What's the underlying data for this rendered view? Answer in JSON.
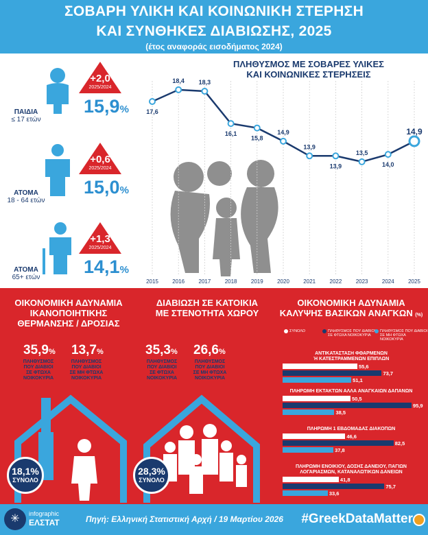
{
  "header": {
    "title_line1": "ΣΟΒΑΡΗ ΥΛΙΚΗ ΚΑΙ ΚΟΙΝΩΝΙΚΗ ΣΤΕΡΗΣΗ",
    "title_line2": "ΚΑΙ ΣΥΝΘΗΚΕΣ ΔΙΑΒΙΩΣΗΣ, 2025",
    "subtitle": "(έτος αναφοράς εισοδήματος 2024)"
  },
  "groups": [
    {
      "label": "ΠΑΙΔΙΑ",
      "sub": "≤ 17 ετών",
      "change": "+2,0",
      "period": "2025/2024",
      "value": "15,9",
      "unit": "%"
    },
    {
      "label": "ΑΤΟΜΑ",
      "sub": "18 - 64 ετών",
      "change": "+0,6",
      "period": "2025/2024",
      "value": "15,0",
      "unit": "%"
    },
    {
      "label": "ΑΤΟΜΑ",
      "sub": "65+ ετών",
      "change": "+1,3",
      "period": "2025/2024",
      "value": "14,1",
      "unit": "%"
    }
  ],
  "chart_data": {
    "type": "line",
    "title": "ΠΛΗΘΥΣΜΟΣ ΜΕ ΣΟΒΑΡΕΣ ΥΛΙΚΕΣ ΚΑΙ ΚΟΙΝΩΝΙΚΕΣ ΣΤΕΡΗΣΕΙΣ",
    "title_line1": "ΠΛΗΘΥΣΜΟΣ ΜΕ ΣΟΒΑΡΕΣ ΥΛΙΚΕΣ",
    "title_line2": "ΚΑΙ ΚΟΙΝΩΝΙΚΕΣ ΣΤΕΡΗΣΕΙΣ",
    "x": [
      "2015",
      "2016",
      "2017",
      "2018",
      "2019",
      "2020",
      "2021",
      "2022",
      "2023",
      "2024",
      "2025"
    ],
    "values": [
      17.6,
      18.4,
      18.3,
      16.1,
      15.8,
      14.9,
      13.9,
      13.9,
      13.5,
      14.0,
      14.9
    ],
    "value_labels": [
      "17,6",
      "18,4",
      "18,3",
      "16,1",
      "15,8",
      "14,9",
      "13,9",
      "13,9",
      "13,5",
      "14,0",
      "14,9"
    ],
    "ylim": [
      12,
      19
    ],
    "line_color": "#1a3a6e",
    "highlight_color": "#3aa6dd"
  },
  "heating": {
    "title_line1": "ΟΙΚΟΝΟΜΙΚΗ ΑΔΥΝΑΜΙΑ",
    "title_line2": "ΙΚΑΝΟΠΟΙΗΤΙΚΗΣ",
    "title_line3": "ΘΕΡΜΑΝΣΗΣ / ΔΡΟΣΙΑΣ",
    "poor_value": "35,9",
    "poor_label_1": "ΠΛΗΘΥΣΜΟΣ",
    "poor_label_2": "ΠΟΥ ΔΙΑΒΙΟΙ",
    "poor_label_3": "ΣΕ ΦΤΩΧΑ",
    "poor_label_4": "ΝΟΙΚΟΚΥΡΙΑ",
    "nonpoor_value": "13,7",
    "nonpoor_label_1": "ΠΛΗΘΥΣΜΟΣ",
    "nonpoor_label_2": "ΠΟΥ ΔΙΑΒΙΟΙ",
    "nonpoor_label_3": "ΣΕ ΜΗ ΦΤΩΧΑ",
    "nonpoor_label_4": "ΝΟΙΚΟΚΥΡΙΑ",
    "total_value": "18,1%",
    "total_label": "ΣΥΝΟΛΟ",
    "unit": "%"
  },
  "housing": {
    "title_line1": "ΔΙΑΒΙΩΣΗ ΣΕ ΚΑΤΟΙΚΙΑ",
    "title_line2": "ΜΕ ΣΤΕΝΟΤΗΤΑ ΧΩΡΟΥ",
    "poor_value": "35,3",
    "nonpoor_value": "26,6",
    "total_value": "28,3%",
    "total_label": "ΣΥΝΟΛΟ",
    "unit": "%"
  },
  "needs": {
    "title_line1": "ΟΙΚΟΝΟΜΙΚΗ ΑΔΥΝΑΜΙΑ",
    "title_line2": "ΚΑΛΥΨΗΣ ΒΑΣΙΚΩΝ ΑΝΑΓΚΩΝ",
    "title_unit": "(%)",
    "legend_total": "ΣΥΝΟΛΟ",
    "legend_poor_1": "ΠΛΗΘΥΣΜΟΣ ΠΟΥ ΔΙΑΒΙΟΙ",
    "legend_poor_2": "ΣΕ ΦΤΩΧΑ ΝΟΙΚΟΚΥΡΙΑ",
    "legend_nonpoor_1": "ΠΛΗΘΥΣΜΟΣ ΠΟΥ ΔΙΑΒΙΟΙ",
    "legend_nonpoor_2": "ΣΕ ΜΗ ΦΤΩΧΑ ΝΟΙΚΟΚΥΡΙΑ",
    "colors": {
      "total": "#ffffff",
      "poor": "#1a3a6e",
      "nonpoor": "#3aa6dd"
    },
    "items": [
      {
        "label_1": "ΑΝΤΙΚΑΤΑΣΤΑΣΗ ΦΘΑΡΜΕΝΩΝ",
        "label_2": "Ή ΚΑΤΕΣΤΡΑΜΜΕΝΩΝ ΕΠΙΠΛΩΝ",
        "total": 55.6,
        "poor": 73.7,
        "nonpoor": 51.1,
        "total_label": "55,6",
        "poor_label": "73,7",
        "nonpoor_label": "51,1"
      },
      {
        "label_1": "ΠΛΗΡΩΜΗ ΕΚΤΑΚΤΩΝ ΑΛΛΑ ΑΝΑΓΚΑΙΩΝ ΔΑΠΑΝΩΝ",
        "label_2": "",
        "total": 50.5,
        "poor": 95.9,
        "nonpoor": 38.5,
        "total_label": "50,5",
        "poor_label": "95,9",
        "nonpoor_label": "38,5"
      },
      {
        "label_1": "ΠΛΗΡΩΜΗ 1 ΕΒΔΟΜΑΔΑΣ ΔΙΑΚΟΠΩΝ",
        "label_2": "",
        "total": 46.6,
        "poor": 82.5,
        "nonpoor": 37.8,
        "total_label": "46,6",
        "poor_label": "82,5",
        "nonpoor_label": "37,8"
      },
      {
        "label_1": "ΠΛΗΡΩΜΗ ΕΝΟΙΚΙΟΥ, ΔΟΣΗΣ ΔΑΝΕΙΟΥ, ΠΑΓΙΩΝ",
        "label_2": "ΛΟΓΑΡΙΑΣΜΩΝ, ΚΑΤΑΝΑΛΩΤΙΚΩΝ ΔΑΝΕΙΩΝ",
        "total": 41.8,
        "poor": 75.7,
        "nonpoor": 33.6,
        "total_label": "41,8",
        "poor_label": "75,7",
        "nonpoor_label": "33,6"
      }
    ]
  },
  "footer": {
    "brand_1": "infographic",
    "brand_2": "ΕΛΣΤΑΤ",
    "source": "Πηγή: Ελληνική Στατιστική Αρχή / 19 Μαρτίου 2026",
    "hashtag": "#GreekDataMatter"
  }
}
